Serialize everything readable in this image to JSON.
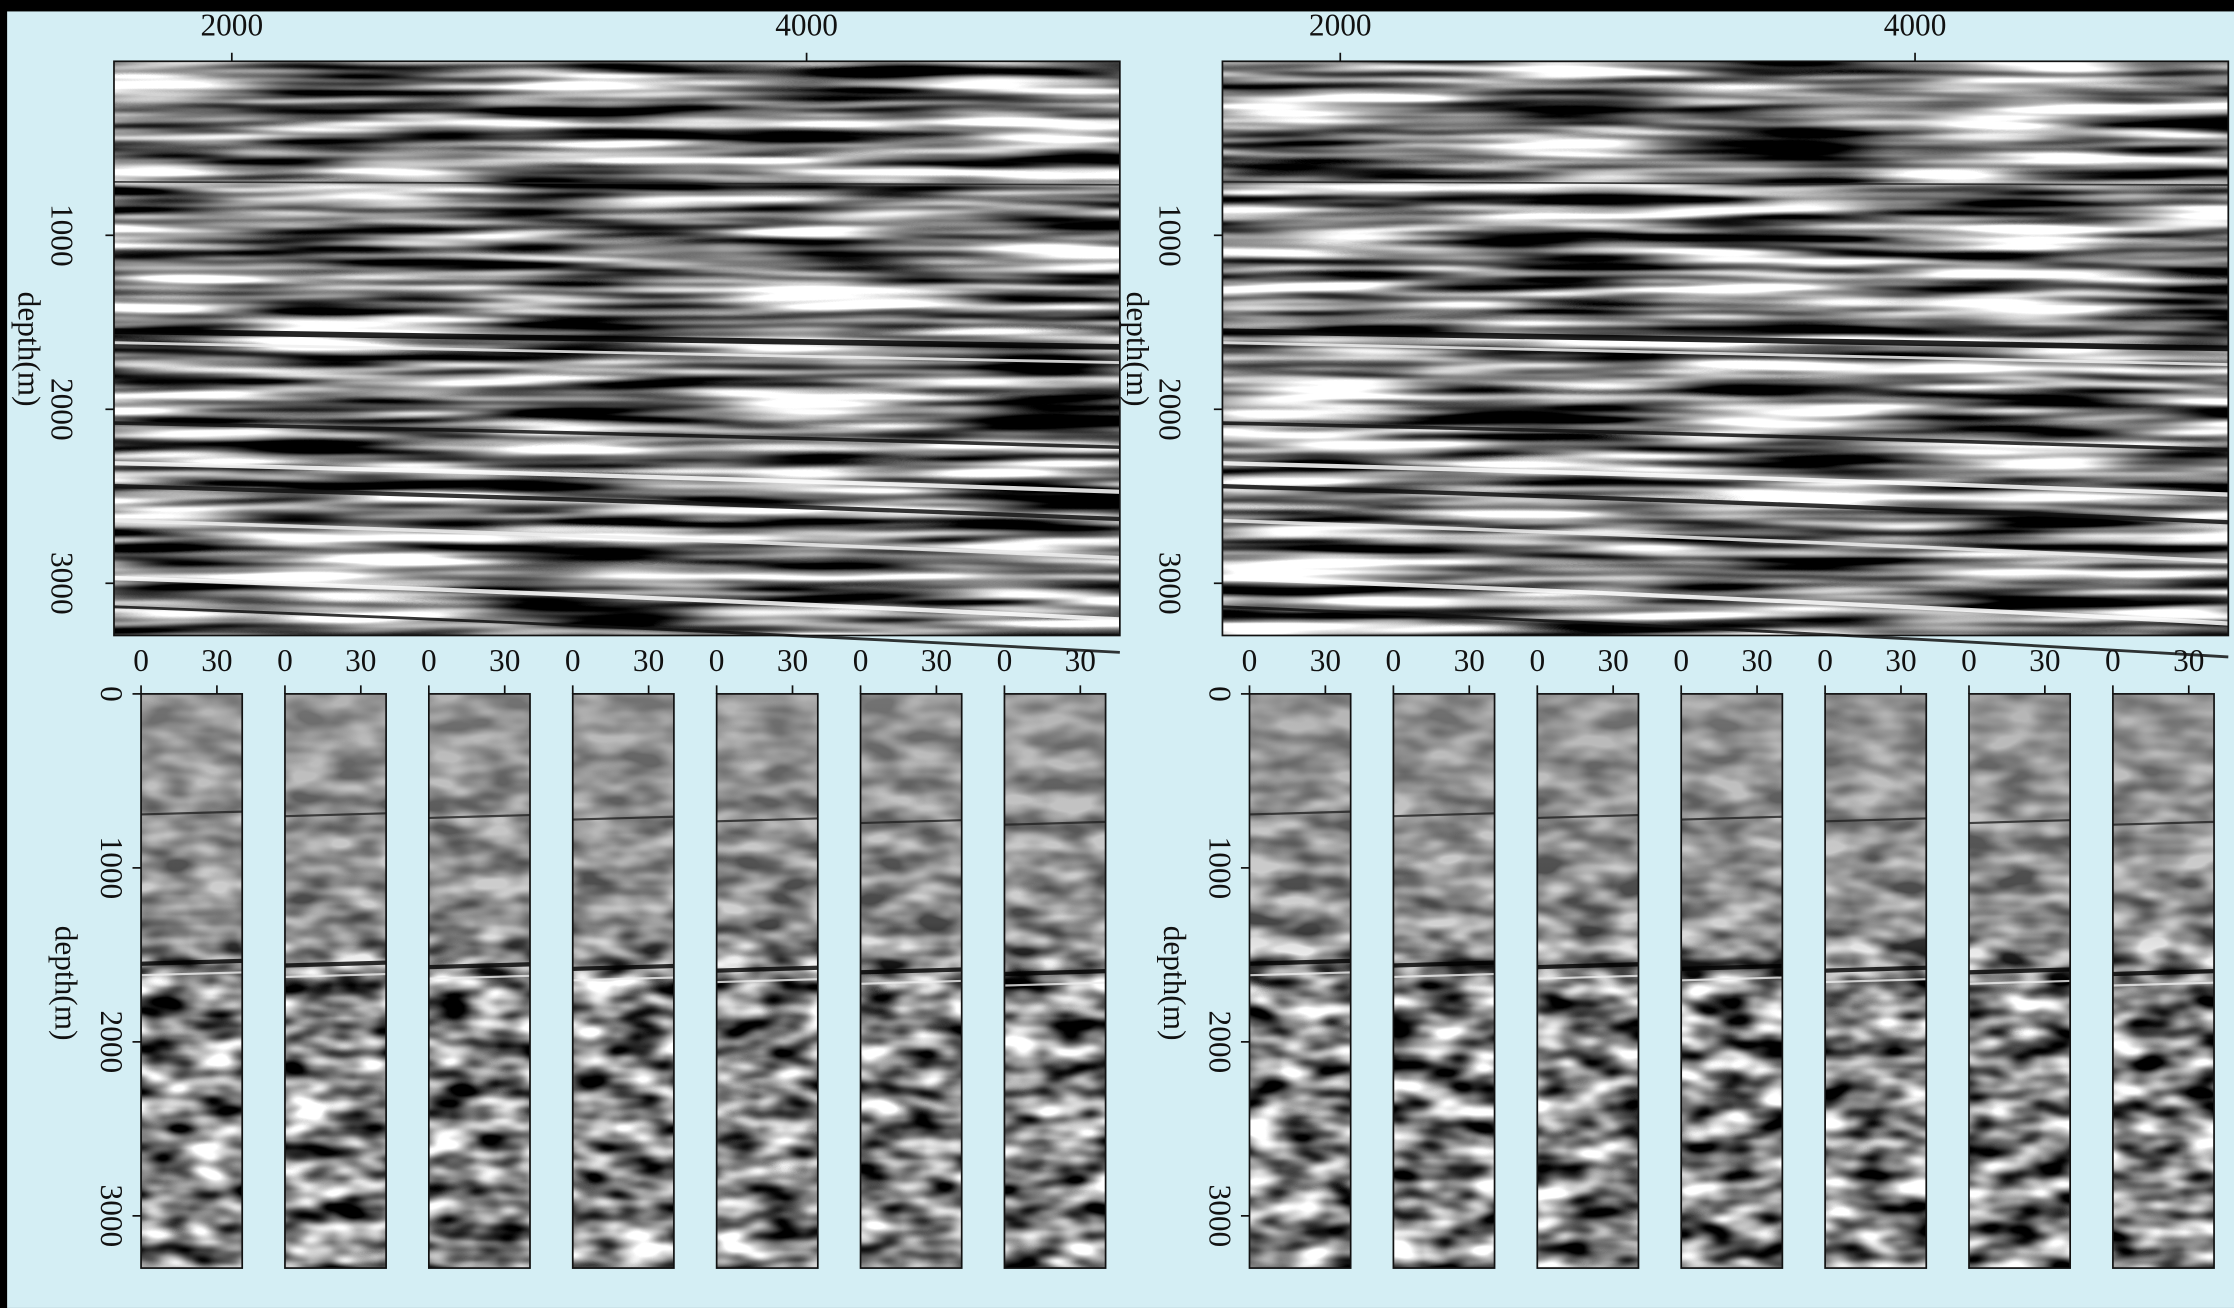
{
  "panels": [
    {
      "section": {
        "xlim": [
          1590,
          5090
        ],
        "xticks": [
          2000,
          4000
        ],
        "ylim": [
          0,
          3300
        ],
        "yticks": [
          1000,
          2000,
          3000
        ],
        "ylabel": "depth(m)"
      },
      "gather_axis": {
        "ylim": [
          0,
          3300
        ],
        "yticks": [
          0,
          1000,
          2000,
          3000
        ],
        "ylabel": "depth(m)"
      },
      "gathers": [
        {
          "xlim": [
            0,
            40
          ],
          "xticks": [
            0,
            30
          ]
        },
        {
          "xlim": [
            0,
            40
          ],
          "xticks": [
            0,
            30
          ]
        },
        {
          "xlim": [
            0,
            40
          ],
          "xticks": [
            0,
            30
          ]
        },
        {
          "xlim": [
            0,
            40
          ],
          "xticks": [
            0,
            30
          ]
        },
        {
          "xlim": [
            0,
            40
          ],
          "xticks": [
            0,
            30
          ]
        },
        {
          "xlim": [
            0,
            40
          ],
          "xticks": [
            0,
            30
          ]
        },
        {
          "xlim": [
            0,
            40
          ],
          "xticks": [
            0,
            30
          ]
        }
      ]
    },
    {
      "section": {
        "xlim": [
          1590,
          5090
        ],
        "xticks": [
          2000,
          4000
        ],
        "ylim": [
          0,
          3300
        ],
        "yticks": [
          1000,
          2000,
          3000
        ],
        "ylabel": "depth(m)"
      },
      "gather_axis": {
        "ylim": [
          0,
          3300
        ],
        "yticks": [
          0,
          1000,
          2000,
          3000
        ],
        "ylabel": "depth(m)"
      },
      "gathers": [
        {
          "xlim": [
            0,
            40
          ],
          "xticks": [
            0,
            30
          ]
        },
        {
          "xlim": [
            0,
            40
          ],
          "xticks": [
            0,
            30
          ]
        },
        {
          "xlim": [
            0,
            40
          ],
          "xticks": [
            0,
            30
          ]
        },
        {
          "xlim": [
            0,
            40
          ],
          "xticks": [
            0,
            30
          ]
        },
        {
          "xlim": [
            0,
            40
          ],
          "xticks": [
            0,
            30
          ]
        },
        {
          "xlim": [
            0,
            40
          ],
          "xticks": [
            0,
            30
          ]
        },
        {
          "xlim": [
            0,
            40
          ],
          "xticks": [
            0,
            30
          ]
        }
      ]
    }
  ]
}
